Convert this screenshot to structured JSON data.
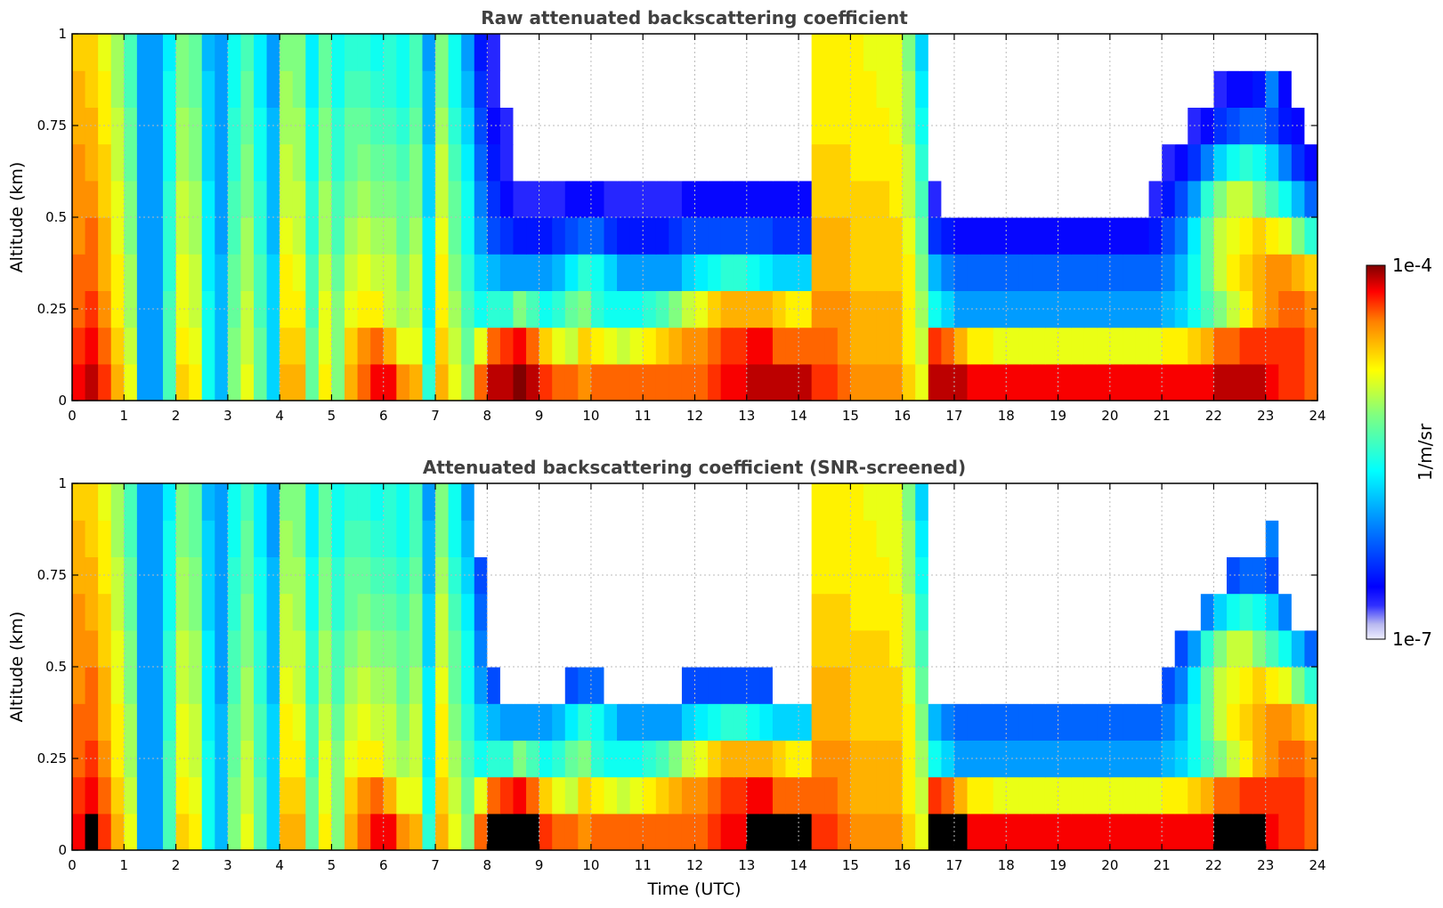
{
  "figure": {
    "colorbar": {
      "max_label": "1e-4",
      "min_label": "1e-7",
      "unit": "1/m/sr",
      "scale": "log",
      "colormap": "jet (white at lowest bin)"
    },
    "xlabel": "Time (UTC)"
  },
  "chart_data": [
    {
      "type": "heatmap",
      "title": "Raw attenuated backscattering coefficient",
      "xlabel": "",
      "ylabel": "Altitude (km)",
      "xlim": [
        0,
        24
      ],
      "ylim": [
        0,
        1
      ],
      "xticks": [
        "0",
        "1",
        "2",
        "3",
        "4",
        "5",
        "6",
        "7",
        "8",
        "9",
        "10",
        "11",
        "12",
        "13",
        "14",
        "15",
        "16",
        "17",
        "18",
        "19",
        "20",
        "21",
        "22",
        "23",
        "24"
      ],
      "yticks": [
        "0",
        "0.25",
        "0.5",
        "0.75",
        "1"
      ],
      "grid": true,
      "value_scale": "log10 of 1/m/sr, -7 to -4",
      "x_bin_hours": [
        0,
        0.25,
        0.5,
        0.75,
        1,
        1.25,
        1.5,
        1.75,
        2,
        2.25,
        2.5,
        2.75,
        3,
        3.25,
        3.5,
        3.75,
        4,
        4.25,
        4.5,
        4.75,
        5,
        5.25,
        5.5,
        5.75,
        6,
        6.25,
        6.5,
        6.75,
        7,
        7.25,
        7.5,
        7.75,
        8,
        8.25,
        8.5,
        8.75,
        9,
        9.25,
        9.5,
        9.75,
        10,
        10.25,
        10.5,
        10.75,
        11,
        11.25,
        11.5,
        11.75,
        12,
        12.25,
        12.5,
        12.75,
        13,
        13.25,
        13.5,
        13.75,
        14,
        14.25,
        14.5,
        14.75,
        15,
        15.25,
        15.5,
        15.75,
        16,
        16.25,
        16.5,
        16.75,
        17,
        17.25,
        17.5,
        17.75,
        18,
        18.25,
        18.5,
        18.75,
        19,
        19.25,
        19.5,
        19.75,
        20,
        20.25,
        20.5,
        20.75,
        21,
        21.25,
        21.5,
        21.75,
        22,
        22.25,
        22.5,
        22.75,
        23,
        23.25,
        23.5,
        23.75
      ],
      "y_bin_km": [
        0,
        0.1,
        0.2,
        0.3,
        0.4,
        0.5,
        0.6,
        0.7,
        0.8,
        0.9
      ],
      "grid_log10": [
        [
          -4.2,
          -4.1,
          -4.3,
          -4.6,
          -4.9,
          -6.0,
          -6.0,
          -5.4,
          -4.7,
          -4.8,
          -5.6,
          -5.9,
          -5.2,
          -4.9,
          -5.3,
          -5.8,
          -4.6,
          -4.6,
          -5.3,
          -4.8,
          -5.2,
          -4.6,
          -4.4,
          -4.2,
          -4.2,
          -4.5,
          -4.6,
          -5.5,
          -4.6,
          -4.9,
          -5.2,
          -4.4,
          -4.1,
          -4.1,
          -4.0,
          -4.1,
          -4.3,
          -4.4,
          -4.4,
          -4.5,
          -4.4,
          -4.4,
          -4.4,
          -4.4,
          -4.4,
          -4.4,
          -4.4,
          -4.4,
          -4.4,
          -4.3,
          -4.2,
          -4.2,
          -4.1,
          -4.1,
          -4.1,
          -4.1,
          -4.1,
          -4.3,
          -4.3,
          -4.4,
          -4.5,
          -4.5,
          -4.5,
          -4.5,
          -4.7,
          -4.9,
          -4.1,
          -4.1,
          -4.1,
          -4.2,
          -4.2,
          -4.2,
          -4.2,
          -4.2,
          -4.2,
          -4.2,
          -4.2,
          -4.2,
          -4.2,
          -4.2,
          -4.2,
          -4.2,
          -4.2,
          -4.2,
          -4.2,
          -4.2,
          -4.2,
          -4.2,
          -4.1,
          -4.1,
          -4.1,
          -4.1,
          -4.2,
          -4.3,
          -4.3,
          -4.4
        ],
        [
          -4.3,
          -4.2,
          -4.4,
          -4.7,
          -5.0,
          -6.0,
          -6.0,
          -5.4,
          -4.8,
          -4.9,
          -5.6,
          -5.9,
          -5.2,
          -5.0,
          -5.3,
          -5.8,
          -4.7,
          -4.7,
          -5.3,
          -4.9,
          -5.2,
          -4.7,
          -4.5,
          -4.4,
          -4.6,
          -4.9,
          -4.9,
          -5.6,
          -4.7,
          -5.0,
          -5.3,
          -4.9,
          -4.4,
          -4.3,
          -4.2,
          -4.4,
          -4.7,
          -4.9,
          -5.0,
          -4.7,
          -4.8,
          -4.9,
          -5.0,
          -4.9,
          -4.8,
          -4.7,
          -4.6,
          -4.5,
          -4.5,
          -4.4,
          -4.3,
          -4.3,
          -4.2,
          -4.2,
          -4.4,
          -4.4,
          -4.4,
          -4.4,
          -4.4,
          -4.5,
          -4.6,
          -4.6,
          -4.6,
          -4.6,
          -4.8,
          -5.0,
          -4.3,
          -4.4,
          -4.6,
          -4.8,
          -4.8,
          -4.9,
          -4.9,
          -4.9,
          -4.9,
          -4.9,
          -4.9,
          -4.9,
          -4.9,
          -4.9,
          -4.9,
          -4.9,
          -4.9,
          -4.9,
          -4.8,
          -4.8,
          -4.7,
          -4.6,
          -4.4,
          -4.4,
          -4.3,
          -4.3,
          -4.3,
          -4.3,
          -4.3,
          -4.4
        ],
        [
          -4.4,
          -4.3,
          -4.5,
          -4.8,
          -5.1,
          -6.0,
          -6.0,
          -5.4,
          -4.9,
          -5.0,
          -5.6,
          -5.9,
          -5.3,
          -5.0,
          -5.4,
          -5.8,
          -4.8,
          -4.8,
          -5.4,
          -4.9,
          -5.2,
          -4.9,
          -4.8,
          -4.8,
          -5.0,
          -5.1,
          -5.0,
          -5.7,
          -4.8,
          -5.1,
          -5.4,
          -5.6,
          -5.5,
          -5.5,
          -5.2,
          -5.4,
          -5.6,
          -5.5,
          -5.3,
          -5.2,
          -5.5,
          -5.6,
          -5.6,
          -5.6,
          -5.5,
          -5.4,
          -5.2,
          -5.0,
          -4.9,
          -4.7,
          -4.6,
          -4.6,
          -4.6,
          -4.6,
          -4.7,
          -4.8,
          -4.8,
          -4.5,
          -4.5,
          -4.5,
          -4.6,
          -4.6,
          -4.6,
          -4.6,
          -4.8,
          -5.1,
          -5.6,
          -5.8,
          -6.0,
          -6.0,
          -6.0,
          -6.0,
          -6.0,
          -6.0,
          -6.0,
          -6.0,
          -6.0,
          -6.0,
          -6.0,
          -6.0,
          -6.0,
          -6.0,
          -6.0,
          -6.0,
          -5.9,
          -5.8,
          -5.6,
          -5.4,
          -5.2,
          -5.0,
          -4.8,
          -4.6,
          -4.5,
          -4.4,
          -4.4,
          -4.5
        ],
        [
          -4.4,
          -4.4,
          -4.6,
          -4.8,
          -5.1,
          -6.0,
          -6.0,
          -5.5,
          -4.9,
          -5.0,
          -5.7,
          -5.9,
          -5.3,
          -5.1,
          -5.4,
          -5.8,
          -4.8,
          -4.9,
          -5.4,
          -5.0,
          -5.3,
          -5.0,
          -4.9,
          -5.0,
          -5.0,
          -5.2,
          -5.0,
          -5.7,
          -4.8,
          -5.2,
          -5.5,
          -5.8,
          -5.9,
          -6.0,
          -6.0,
          -6.0,
          -6.0,
          -5.9,
          -5.7,
          -5.5,
          -5.6,
          -5.8,
          -6.0,
          -6.0,
          -6.0,
          -6.0,
          -6.0,
          -5.8,
          -5.7,
          -5.6,
          -5.5,
          -5.5,
          -5.6,
          -5.7,
          -5.8,
          -5.8,
          -5.8,
          -4.6,
          -4.6,
          -4.6,
          -4.7,
          -4.7,
          -4.7,
          -4.7,
          -4.8,
          -5.2,
          -5.9,
          -6.1,
          -6.2,
          -6.2,
          -6.2,
          -6.2,
          -6.2,
          -6.2,
          -6.2,
          -6.2,
          -6.2,
          -6.2,
          -6.2,
          -6.2,
          -6.2,
          -6.2,
          -6.2,
          -6.2,
          -6.1,
          -5.9,
          -5.6,
          -5.3,
          -5.0,
          -4.8,
          -4.7,
          -4.6,
          -4.5,
          -4.5,
          -4.6,
          -4.7
        ],
        [
          -4.5,
          -4.4,
          -4.6,
          -4.9,
          -5.2,
          -6.0,
          -6.0,
          -5.5,
          -5.0,
          -5.1,
          -5.7,
          -6.0,
          -5.4,
          -5.1,
          -5.5,
          -5.9,
          -4.9,
          -5.0,
          -5.5,
          -5.1,
          -5.4,
          -5.1,
          -5.0,
          -5.1,
          -5.1,
          -5.3,
          -5.1,
          -5.7,
          -4.9,
          -5.3,
          -5.6,
          -6.0,
          -6.3,
          -6.4,
          -6.5,
          -6.5,
          -6.5,
          -6.4,
          -6.3,
          -6.2,
          -6.2,
          -6.4,
          -6.5,
          -6.5,
          -6.5,
          -6.5,
          -6.4,
          -6.3,
          -6.3,
          -6.3,
          -6.3,
          -6.3,
          -6.3,
          -6.3,
          -6.4,
          -6.4,
          -6.4,
          -4.6,
          -4.6,
          -4.6,
          -4.7,
          -4.7,
          -4.7,
          -4.7,
          -4.9,
          -5.3,
          -6.4,
          -6.5,
          -6.6,
          -6.6,
          -6.6,
          -6.6,
          -6.6,
          -6.6,
          -6.6,
          -6.6,
          -6.6,
          -6.6,
          -6.6,
          -6.6,
          -6.6,
          -6.6,
          -6.6,
          -6.5,
          -6.3,
          -6.1,
          -5.7,
          -5.3,
          -5.0,
          -4.9,
          -4.8,
          -4.7,
          -4.8,
          -4.9,
          -5.2,
          -5.5
        ],
        [
          -4.5,
          -4.5,
          -4.7,
          -4.9,
          -5.2,
          -6.0,
          -6.0,
          -5.5,
          -5.0,
          -5.1,
          -5.7,
          -6.0,
          -5.4,
          -5.2,
          -5.5,
          -5.9,
          -5.0,
          -5.0,
          -5.5,
          -5.1,
          -5.4,
          -5.2,
          -5.1,
          -5.2,
          -5.2,
          -5.3,
          -5.2,
          -5.8,
          -5.0,
          -5.3,
          -5.6,
          -6.1,
          -6.4,
          -6.6,
          -6.7,
          -6.7,
          -6.7,
          -6.7,
          -6.6,
          -6.6,
          -6.6,
          -6.7,
          -6.7,
          -6.7,
          -6.7,
          -6.7,
          -6.7,
          -6.6,
          -6.6,
          -6.6,
          -6.6,
          -6.6,
          -6.6,
          -6.6,
          -6.6,
          -6.6,
          -6.6,
          -4.7,
          -4.7,
          -4.7,
          -4.7,
          -4.7,
          -4.7,
          -4.8,
          -5.0,
          -5.4,
          -6.7,
          -6.8,
          -6.8,
          -6.8,
          -6.8,
          -6.8,
          -6.8,
          -6.8,
          -6.8,
          -6.8,
          -6.8,
          -6.8,
          -6.8,
          -6.8,
          -6.8,
          -6.8,
          -6.8,
          -6.7,
          -6.5,
          -6.3,
          -6.0,
          -5.5,
          -5.2,
          -5.0,
          -5.0,
          -5.2,
          -5.4,
          -5.6,
          -5.9,
          -6.2
        ],
        [
          -4.5,
          -4.6,
          -4.7,
          -5.0,
          -5.3,
          -6.0,
          -6.0,
          -5.6,
          -5.1,
          -5.2,
          -5.8,
          -6.0,
          -5.5,
          -5.2,
          -5.6,
          -5.9,
          -5.0,
          -5.1,
          -5.6,
          -5.2,
          -5.5,
          -5.3,
          -5.2,
          -5.3,
          -5.3,
          -5.4,
          -5.2,
          -5.8,
          -5.0,
          -5.4,
          -5.7,
          -6.2,
          -6.5,
          -6.7,
          -6.8,
          -6.8,
          -6.8,
          -6.8,
          -6.8,
          -6.8,
          -6.8,
          -6.8,
          -6.8,
          -6.8,
          -6.8,
          -6.8,
          -6.8,
          -6.8,
          -6.8,
          -6.8,
          -6.8,
          -6.8,
          -6.8,
          -6.8,
          -6.8,
          -6.8,
          -6.8,
          -4.7,
          -4.7,
          -4.7,
          -4.8,
          -4.8,
          -4.8,
          -4.8,
          -5.0,
          -5.5,
          -6.8,
          -6.9,
          -6.9,
          -6.9,
          -6.9,
          -6.9,
          -6.9,
          -6.9,
          -6.9,
          -6.9,
          -6.9,
          -6.9,
          -6.9,
          -6.9,
          -6.9,
          -6.9,
          -6.9,
          -6.8,
          -6.7,
          -6.6,
          -6.4,
          -6.1,
          -5.8,
          -5.6,
          -5.5,
          -5.6,
          -5.8,
          -6.1,
          -6.4,
          -6.6
        ],
        [
          -4.6,
          -4.6,
          -4.8,
          -5.0,
          -5.3,
          -6.0,
          -6.0,
          -5.6,
          -5.1,
          -5.2,
          -5.8,
          -6.0,
          -5.5,
          -5.3,
          -5.6,
          -5.9,
          -5.1,
          -5.1,
          -5.6,
          -5.2,
          -5.5,
          -5.3,
          -5.3,
          -5.4,
          -5.4,
          -5.5,
          -5.3,
          -5.9,
          -5.1,
          -5.5,
          -5.8,
          -6.3,
          -6.6,
          -6.7,
          -6.8,
          -6.8,
          -6.8,
          -6.8,
          -6.8,
          -6.8,
          -6.8,
          -6.8,
          -6.8,
          -6.8,
          -6.8,
          -6.8,
          -6.8,
          -6.8,
          -6.8,
          -6.8,
          -6.8,
          -6.8,
          -6.8,
          -6.8,
          -6.8,
          -6.8,
          -6.8,
          -4.8,
          -4.8,
          -4.8,
          -4.8,
          -4.8,
          -4.8,
          -4.9,
          -5.1,
          -5.6,
          -6.8,
          -6.9,
          -6.9,
          -6.9,
          -6.9,
          -6.9,
          -6.9,
          -6.9,
          -6.9,
          -6.9,
          -6.9,
          -6.9,
          -6.9,
          -6.9,
          -6.9,
          -6.9,
          -6.9,
          -6.9,
          -6.8,
          -6.8,
          -6.7,
          -6.6,
          -6.4,
          -6.3,
          -6.2,
          -6.2,
          -6.3,
          -6.5,
          -6.6,
          -6.8
        ],
        [
          -4.6,
          -4.7,
          -4.8,
          -5.1,
          -5.4,
          -6.0,
          -6.0,
          -5.6,
          -5.2,
          -5.3,
          -5.8,
          -6.0,
          -5.6,
          -5.3,
          -5.7,
          -6.0,
          -5.1,
          -5.2,
          -5.7,
          -5.3,
          -5.6,
          -5.4,
          -5.4,
          -5.5,
          -5.5,
          -5.6,
          -5.4,
          -5.9,
          -5.2,
          -5.6,
          -5.9,
          -6.4,
          -6.7,
          -6.8,
          -6.8,
          -6.8,
          -6.8,
          -6.8,
          -6.8,
          -6.8,
          -6.8,
          -6.8,
          -6.8,
          -6.8,
          -6.8,
          -6.8,
          -6.8,
          -6.8,
          -6.8,
          -6.8,
          -6.8,
          -6.8,
          -6.8,
          -6.8,
          -6.8,
          -6.8,
          -6.8,
          -4.8,
          -4.8,
          -4.8,
          -4.8,
          -4.8,
          -4.9,
          -4.9,
          -5.1,
          -5.7,
          -6.8,
          -6.9,
          -6.9,
          -6.9,
          -6.9,
          -6.9,
          -6.9,
          -6.9,
          -6.9,
          -6.9,
          -6.9,
          -6.9,
          -6.9,
          -6.9,
          -6.9,
          -6.9,
          -6.9,
          -6.9,
          -6.9,
          -6.8,
          -6.8,
          -6.8,
          -6.7,
          -6.6,
          -6.6,
          -6.5,
          -6.1,
          -6.6,
          -6.8,
          -6.9
        ],
        [
          -4.7,
          -4.7,
          -4.9,
          -5.1,
          -5.4,
          -6.0,
          -6.0,
          -5.7,
          -5.2,
          -5.3,
          -5.9,
          -6.0,
          -5.6,
          -5.4,
          -5.7,
          -6.0,
          -5.2,
          -5.2,
          -5.7,
          -5.3,
          -5.6,
          -5.5,
          -5.5,
          -5.6,
          -5.5,
          -5.6,
          -5.4,
          -6.0,
          -5.2,
          -5.6,
          -6.0,
          -6.5,
          -6.7,
          -6.8,
          -6.8,
          -6.8,
          -6.8,
          -6.8,
          -6.8,
          -6.8,
          -6.8,
          -6.8,
          -6.8,
          -6.8,
          -6.8,
          -6.8,
          -6.8,
          -6.8,
          -6.8,
          -6.8,
          -6.8,
          -6.8,
          -6.8,
          -6.8,
          -6.8,
          -6.8,
          -6.8,
          -4.8,
          -4.8,
          -4.8,
          -4.8,
          -4.9,
          -4.9,
          -4.9,
          -5.2,
          -5.8,
          -6.8,
          -6.9,
          -6.9,
          -6.9,
          -6.9,
          -6.9,
          -6.9,
          -6.9,
          -6.9,
          -6.9,
          -6.9,
          -6.9,
          -6.9,
          -6.9,
          -6.9,
          -6.9,
          -6.9,
          -6.9,
          -6.9,
          -6.9,
          -6.9,
          -6.9,
          -6.8,
          -6.8,
          -6.8,
          -6.8,
          -6.8,
          -6.9,
          -6.9,
          -7.0
        ]
      ]
    },
    {
      "type": "heatmap",
      "title": "Attenuated backscattering coefficient (SNR-screened)",
      "xlabel": "Time (UTC)",
      "ylabel": "Altitude (km)",
      "xlim": [
        0,
        24
      ],
      "ylim": [
        0,
        1
      ],
      "xticks": [
        "0",
        "1",
        "2",
        "3",
        "4",
        "5",
        "6",
        "7",
        "8",
        "9",
        "10",
        "11",
        "12",
        "13",
        "14",
        "15",
        "16",
        "17",
        "18",
        "19",
        "20",
        "21",
        "22",
        "23",
        "24"
      ],
      "yticks": [
        "0",
        "0.25",
        "0.5",
        "0.75",
        "1"
      ],
      "grid": true,
      "screened_value_threshold_log10": -6.3,
      "saturated_shown_black_above_log10": -4.15,
      "note": "same field as raw panel with low-SNR bins removed (white) and saturated returns drawn black"
    }
  ]
}
